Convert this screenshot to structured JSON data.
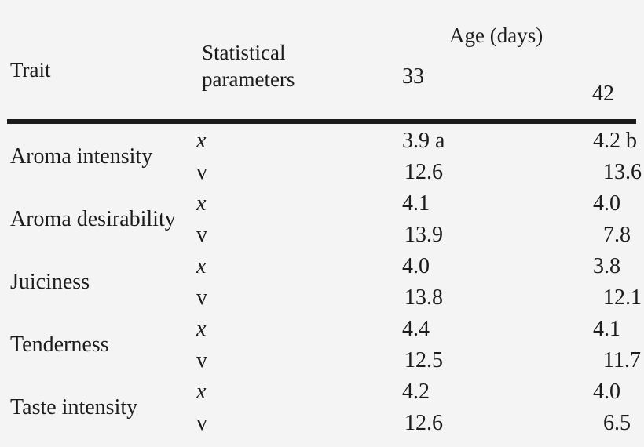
{
  "page": {
    "background_color": "#f5f4f5",
    "text_color": "#1c1c1c",
    "rule_color": "#1a1a1a"
  },
  "table": {
    "header": {
      "trait": "Trait",
      "statistical_parameters": "Statistical parameters",
      "age_group": "Age (days)",
      "age_33": "33",
      "age_42": "42"
    },
    "parameter_labels": {
      "mean": "x",
      "variation": "v"
    },
    "rows": [
      {
        "trait": "Aroma intensity",
        "x": {
          "age_33": "3.9 a",
          "age_42": "4.2 b"
        },
        "v": {
          "age_33": "12.6",
          "age_42": "13.6"
        }
      },
      {
        "trait": "Aroma desirability",
        "x": {
          "age_33": "4.1",
          "age_42": "4.0"
        },
        "v": {
          "age_33": "13.9",
          "age_42": "7.8"
        }
      },
      {
        "trait": "Juiciness",
        "x": {
          "age_33": "4.0",
          "age_42": "3.8"
        },
        "v": {
          "age_33": "13.8",
          "age_42": "12.1"
        }
      },
      {
        "trait": "Tenderness",
        "x": {
          "age_33": "4.4",
          "age_42": "4.1"
        },
        "v": {
          "age_33": "12.5",
          "age_42": "11.7"
        }
      },
      {
        "trait": "Taste intensity",
        "x": {
          "age_33": "4.2",
          "age_42": "4.0"
        },
        "v": {
          "age_33": "12.6",
          "age_42": "6.5"
        }
      }
    ]
  }
}
